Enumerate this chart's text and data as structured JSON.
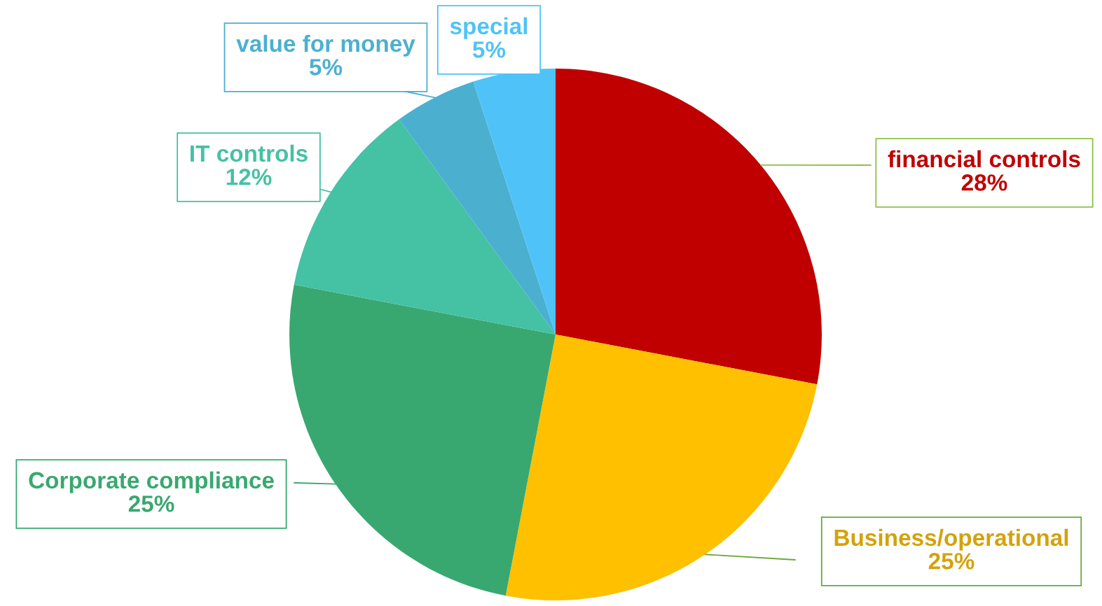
{
  "chart_data": {
    "type": "pie",
    "categories": [
      "financial controls",
      "Business/operational",
      "Corporate compliance",
      "IT controls",
      "value for money",
      "special"
    ],
    "values": [
      28,
      25,
      25,
      12,
      5,
      5
    ],
    "value_labels": [
      "28%",
      "25%",
      "25%",
      "12%",
      "5%",
      "5%"
    ],
    "colors": [
      "#c00000",
      "#ffc000",
      "#38a870",
      "#45c1a4",
      "#4bb0d0",
      "#4fc3f7"
    ],
    "legend": false
  }
}
